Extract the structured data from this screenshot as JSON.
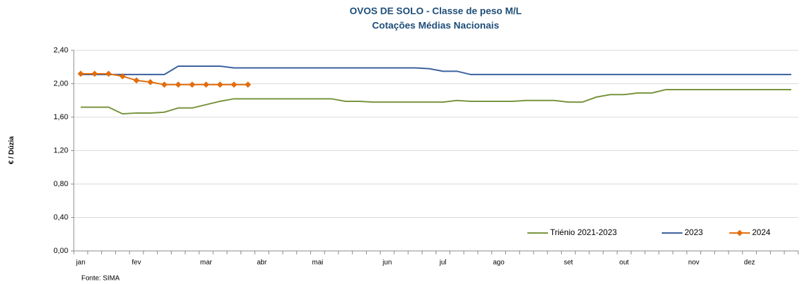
{
  "chart_data": {
    "type": "line",
    "title": "OVOS DE SOLO - Classe de peso M/L",
    "subtitle": "Cotações Médias Nacionais",
    "y_label": "€ / Dúzia",
    "source": "Fonte: SIMA",
    "categories": [
      "jan",
      null,
      null,
      null,
      "fev",
      null,
      null,
      null,
      null,
      "mar",
      null,
      null,
      null,
      "abr",
      null,
      null,
      null,
      "mai",
      null,
      null,
      null,
      null,
      "jun",
      null,
      null,
      null,
      "jul",
      null,
      null,
      null,
      "ago",
      null,
      null,
      null,
      null,
      "set",
      null,
      null,
      null,
      "out",
      null,
      null,
      null,
      null,
      "nov",
      null,
      null,
      null,
      "dez",
      null,
      null,
      null
    ],
    "series": [
      {
        "name": "Triénio 2021-2023",
        "color": "#77933c",
        "marker": "none",
        "values": [
          1.72,
          1.72,
          1.72,
          1.64,
          1.65,
          1.65,
          1.66,
          1.71,
          1.71,
          1.75,
          1.79,
          1.82,
          1.82,
          1.82,
          1.82,
          1.82,
          1.82,
          1.82,
          1.82,
          1.79,
          1.79,
          1.78,
          1.78,
          1.78,
          1.78,
          1.78,
          1.78,
          1.8,
          1.79,
          1.79,
          1.79,
          1.79,
          1.8,
          1.8,
          1.8,
          1.78,
          1.78,
          1.84,
          1.87,
          1.87,
          1.89,
          1.89,
          1.93,
          1.93,
          1.93,
          1.93,
          1.93,
          1.93,
          1.93,
          1.93,
          1.93,
          1.93
        ]
      },
      {
        "name": "2023",
        "color": "#3a5f9e",
        "marker": "none",
        "values": [
          2.11,
          2.11,
          2.11,
          2.11,
          2.11,
          2.11,
          2.11,
          2.21,
          2.21,
          2.21,
          2.21,
          2.19,
          2.19,
          2.19,
          2.19,
          2.19,
          2.19,
          2.19,
          2.19,
          2.19,
          2.19,
          2.19,
          2.19,
          2.19,
          2.19,
          2.18,
          2.15,
          2.15,
          2.11,
          2.11,
          2.11,
          2.11,
          2.11,
          2.11,
          2.11,
          2.11,
          2.11,
          2.11,
          2.11,
          2.11,
          2.11,
          2.11,
          2.11,
          2.11,
          2.11,
          2.11,
          2.11,
          2.11,
          2.11,
          2.11,
          2.11,
          2.11
        ]
      },
      {
        "name": "2024",
        "color": "#e36c0a",
        "marker": "diamond",
        "values": [
          2.12,
          2.12,
          2.12,
          2.09,
          2.04,
          2.02,
          1.99,
          1.99,
          1.99,
          1.99,
          1.99,
          1.99,
          1.99,
          null,
          null,
          null,
          null,
          null,
          null,
          null,
          null,
          null,
          null,
          null,
          null,
          null,
          null,
          null,
          null,
          null,
          null,
          null,
          null,
          null,
          null,
          null,
          null,
          null,
          null,
          null,
          null,
          null,
          null,
          null,
          null,
          null,
          null,
          null,
          null,
          null,
          null,
          null
        ]
      }
    ],
    "ylim": [
      0,
      2.4
    ],
    "yticks": [
      {
        "value": 0,
        "label": "0,00"
      },
      {
        "value": 0.4,
        "label": "0,40"
      },
      {
        "value": 0.8,
        "label": "0,80"
      },
      {
        "value": 1.2,
        "label": "1,20"
      },
      {
        "value": 1.6,
        "label": "1,60"
      },
      {
        "value": 2.0,
        "label": "2,00"
      },
      {
        "value": 2.4,
        "label": "2,40"
      }
    ],
    "grid": true,
    "legend": "bottom-right"
  }
}
